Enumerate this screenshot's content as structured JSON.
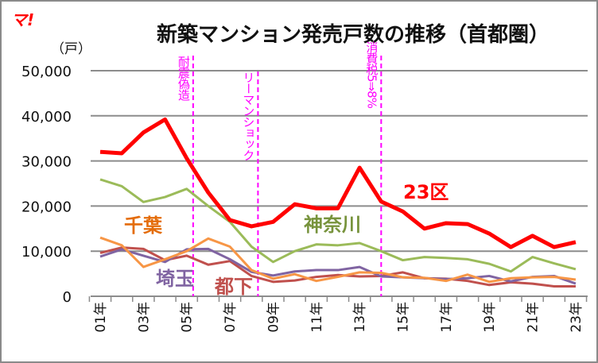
{
  "logo": "マ!",
  "chart_data": {
    "type": "line",
    "title": "新築マンション発売戸数の推移（首都圏）",
    "ylabel": "（戸）",
    "ylim": [
      0,
      50000
    ],
    "yticks": [
      "0",
      "10,000",
      "20,000",
      "30,000",
      "40,000",
      "50,000"
    ],
    "grid": true,
    "x": [
      "01年",
      "02年",
      "03年",
      "04年",
      "05年",
      "06年",
      "07年",
      "08年",
      "09年",
      "10年",
      "11年",
      "12年",
      "13年",
      "14年",
      "15年",
      "16年",
      "17年",
      "18年",
      "19年",
      "20年",
      "21年",
      "22年",
      "23年"
    ],
    "xtick_labels": [
      "01年",
      "03年",
      "05年",
      "07年",
      "09年",
      "11年",
      "13年",
      "15年",
      "17年",
      "19年",
      "21年",
      "23年"
    ],
    "series": [
      {
        "name": "23区",
        "color": "#ff0000",
        "label_color": "#ff0000",
        "values": [
          32000,
          31700,
          36300,
          39200,
          30600,
          23000,
          16900,
          15500,
          16500,
          20400,
          19500,
          19500,
          28500,
          21000,
          18800,
          15000,
          16200,
          16000,
          13900,
          10900,
          13400,
          10900,
          12000
        ]
      },
      {
        "name": "神奈川",
        "color": "#9bbb59",
        "label_color": "#77933c",
        "values": [
          25900,
          24400,
          20900,
          22000,
          23800,
          20000,
          16500,
          11000,
          7600,
          10000,
          11500,
          11300,
          11800,
          10000,
          8000,
          8700,
          8500,
          8200,
          7200,
          5500,
          8700,
          7300,
          6000
        ]
      },
      {
        "name": "千葉",
        "color": "#f79646",
        "label_color": "#e46c0a",
        "values": [
          13000,
          11300,
          6500,
          8200,
          10000,
          12800,
          11000,
          5800,
          3900,
          4900,
          3400,
          4300,
          5300,
          5200,
          4200,
          4100,
          3400,
          4800,
          3200,
          4000,
          4200,
          4300,
          3700
        ]
      },
      {
        "name": "埼玉",
        "color": "#8064a2",
        "label_color": "#8064a2",
        "values": [
          8800,
          10400,
          9000,
          7600,
          10400,
          10500,
          8200,
          5400,
          4600,
          5500,
          5800,
          5800,
          6500,
          4400,
          4200,
          4000,
          3800,
          4000,
          4500,
          3300,
          4300,
          4500,
          2800
        ]
      },
      {
        "name": "都下",
        "color": "#c0504d",
        "label_color": "#c0504d",
        "values": [
          9600,
          10800,
          10500,
          8000,
          9000,
          7000,
          7800,
          4500,
          3200,
          3500,
          4300,
          4700,
          4400,
          4500,
          5300,
          4000,
          3900,
          3400,
          2500,
          3100,
          2800,
          2200,
          2200
        ]
      }
    ],
    "annotations": [
      {
        "text": "耐震偽造",
        "year": 5.3
      },
      {
        "text": "リーマンショック",
        "year": 8.3
      },
      {
        "text": "消費税5⇒8%",
        "year": 14
      }
    ],
    "annotation_color": "#ff00ff"
  }
}
